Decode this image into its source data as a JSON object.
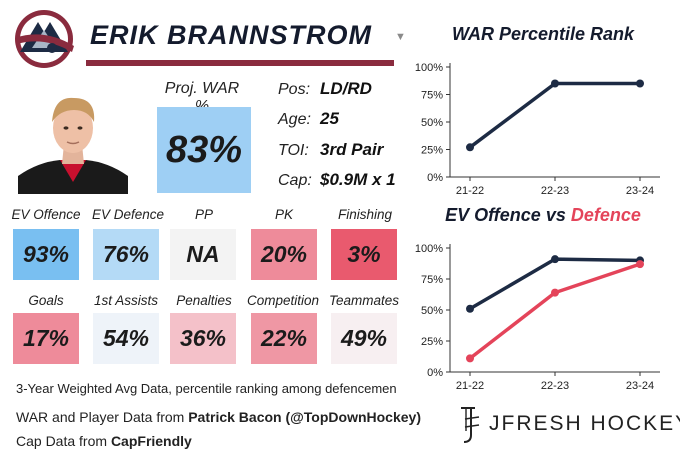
{
  "header": {
    "player_name": "ERIK BRANNSTROM",
    "team_logo_icon": "avalanche-logo-icon",
    "headshot_icon": "player-headshot-icon",
    "dropdown_icon": "caret-down-icon"
  },
  "projection": {
    "label": "Proj. WAR %",
    "value": "83%",
    "color": "#9ecff4"
  },
  "info": [
    {
      "label": "Pos:",
      "value": "LD/RD"
    },
    {
      "label": "Age:",
      "value": "25"
    },
    {
      "label": "TOI:",
      "value": "3rd Pair"
    },
    {
      "label": "Cap:",
      "value": "$0.9M x 1"
    }
  ],
  "stats_row1": [
    {
      "label": "EV Offence",
      "value": "93%",
      "color": "#79bff1"
    },
    {
      "label": "EV Defence",
      "value": "76%",
      "color": "#b4daf6"
    },
    {
      "label": "PP",
      "value": "NA",
      "color": "#f3f3f3"
    },
    {
      "label": "PK",
      "value": "20%",
      "color": "#ee8b9a"
    },
    {
      "label": "Finishing",
      "value": "3%",
      "color": "#e95a6e"
    }
  ],
  "stats_row2": [
    {
      "label": "Goals",
      "value": "17%",
      "color": "#ee8b9a"
    },
    {
      "label": "1st Assists",
      "value": "54%",
      "color": "#eef3f9"
    },
    {
      "label": "Penalties",
      "value": "36%",
      "color": "#f4c1c9"
    },
    {
      "label": "Competition",
      "value": "22%",
      "color": "#ef97a4"
    },
    {
      "label": "Teammates",
      "value": "49%",
      "color": "#f7eff1"
    }
  ],
  "footnote": "3-Year Weighted Avg Data, percentile ranking among defencemen",
  "credits": {
    "line1_prefix": "WAR and Player Data from ",
    "line1_source": "Patrick Bacon (@TopDownHockey)",
    "line2_prefix": "Cap Data from ",
    "line2_source": "CapFriendly"
  },
  "brand": {
    "name": "JFRESH HOCKEY",
    "icon": "jfresh-logo-icon"
  },
  "colors": {
    "navy": "#1d2b44",
    "red": "#e4445a",
    "maroon": "#8a2b3e"
  },
  "chart_data": [
    {
      "type": "line",
      "title": "WAR Percentile Rank",
      "categories": [
        "21-22",
        "22-23",
        "23-24"
      ],
      "series": [
        {
          "values": [
            27,
            85,
            85
          ],
          "color": "#1d2b44"
        }
      ],
      "ylim": [
        0,
        100
      ],
      "yticks": [
        0,
        25,
        50,
        75,
        100
      ],
      "ytick_labels": [
        "0%",
        "25%",
        "50%",
        "75%",
        "100%"
      ],
      "grid": false
    },
    {
      "type": "line",
      "title_part1": "EV Offence",
      "title_part2": " vs ",
      "title_part3": "Defence",
      "categories": [
        "21-22",
        "22-23",
        "23-24"
      ],
      "series": [
        {
          "values": [
            51,
            91,
            90
          ],
          "color": "#1d2b44"
        },
        {
          "values": [
            11,
            64,
            87
          ],
          "color": "#e4445a"
        }
      ],
      "ylim": [
        0,
        100
      ],
      "yticks": [
        0,
        25,
        50,
        75,
        100
      ],
      "ytick_labels": [
        "0%",
        "25%",
        "50%",
        "75%",
        "100%"
      ],
      "grid": false
    }
  ]
}
